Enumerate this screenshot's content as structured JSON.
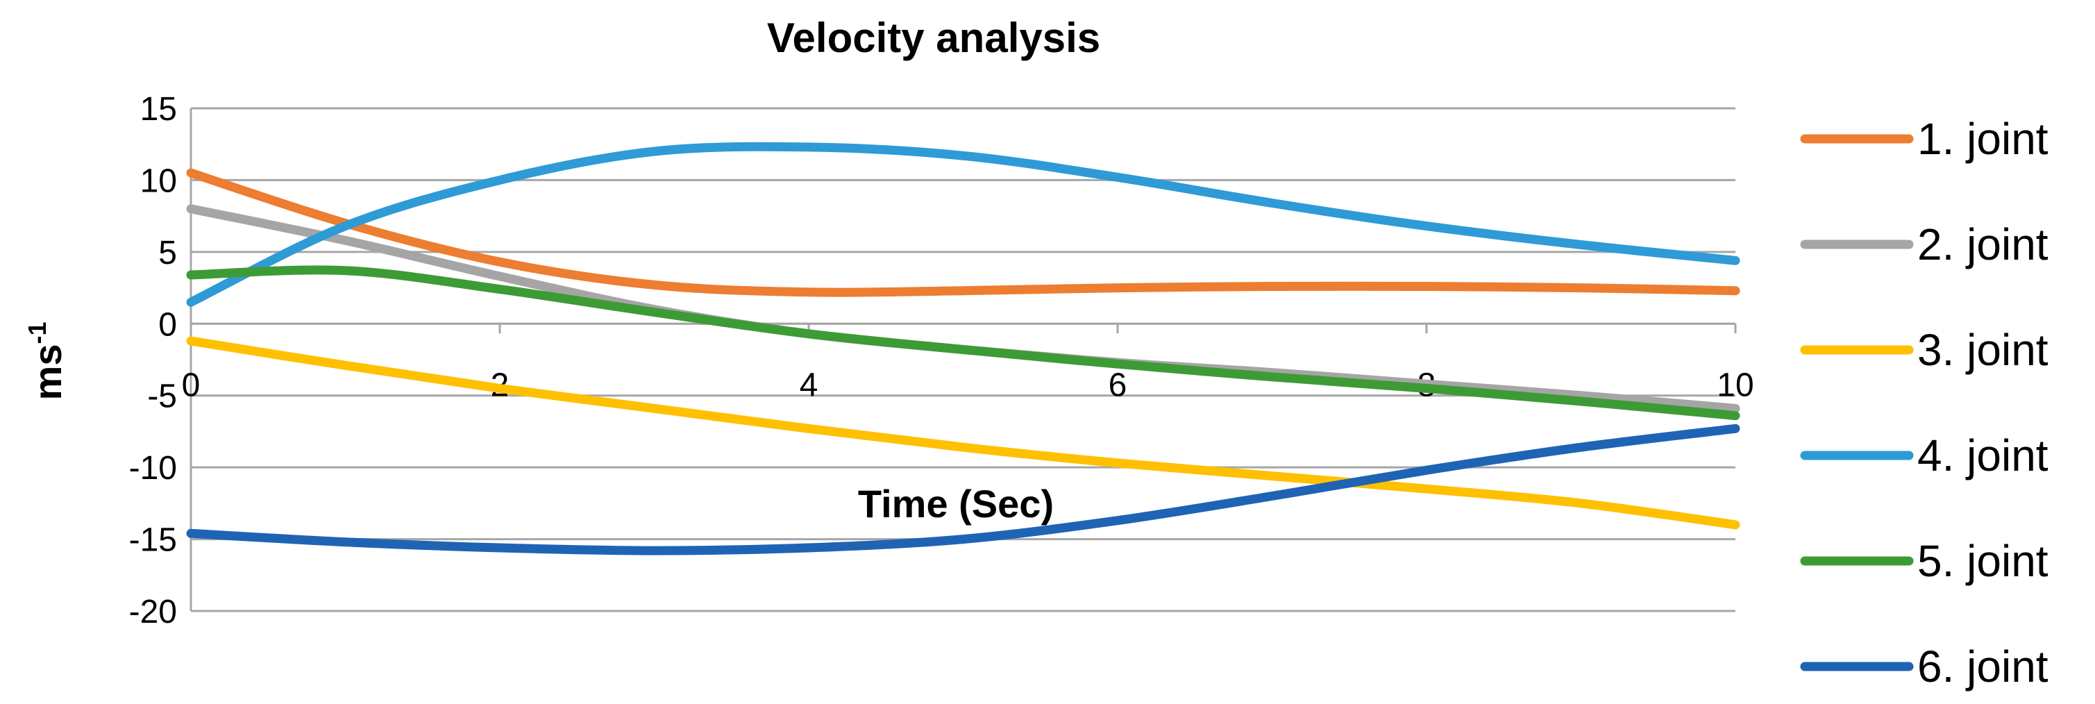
{
  "chart_data": {
    "type": "line",
    "title": "Velocity analysis",
    "xlabel": "Time (Sec)",
    "ylabel": "ms",
    "ylabel_superscript": "-1",
    "xlim": [
      0,
      10
    ],
    "ylim": [
      -20,
      15
    ],
    "xticks": [
      "0",
      "2",
      "4",
      "6",
      "8",
      "10"
    ],
    "yticks": [
      "15",
      "10",
      "5",
      "0",
      "-5",
      "-10",
      "-15",
      "-20"
    ],
    "grid": "horizontal",
    "legend_position": "right",
    "x": [
      0,
      1,
      2,
      3,
      4,
      5,
      6,
      7,
      8,
      9,
      10
    ],
    "series": [
      {
        "name": "1. joint",
        "color": "#ED7D31",
        "values": [
          10.5,
          7.0,
          4.3,
          2.7,
          2.2,
          2.3,
          2.5,
          2.6,
          2.6,
          2.5,
          2.3
        ]
      },
      {
        "name": "2. joint",
        "color": "#A5A5A5",
        "values": [
          8.0,
          5.8,
          3.3,
          1.0,
          -0.7,
          -1.8,
          -2.7,
          -3.4,
          -4.2,
          -5.0,
          -5.9
        ]
      },
      {
        "name": "3. joint",
        "color": "#FFC000",
        "values": [
          -1.2,
          -2.9,
          -4.5,
          -5.9,
          -7.3,
          -8.6,
          -9.7,
          -10.6,
          -11.5,
          -12.5,
          -14.0
        ]
      },
      {
        "name": "4. joint",
        "color": "#2E9BD6",
        "values": [
          1.5,
          6.8,
          10.0,
          12.0,
          12.3,
          11.7,
          10.2,
          8.4,
          6.8,
          5.5,
          4.4
        ]
      },
      {
        "name": "5. joint",
        "color": "#3D9B35",
        "values": [
          3.4,
          3.7,
          2.4,
          0.8,
          -0.7,
          -1.8,
          -2.8,
          -3.7,
          -4.5,
          -5.4,
          -6.4
        ]
      },
      {
        "name": "6. joint",
        "color": "#1F64B4",
        "values": [
          -14.6,
          -15.2,
          -15.6,
          -15.8,
          -15.6,
          -15.0,
          -13.7,
          -12.0,
          -10.2,
          -8.6,
          -7.3
        ]
      }
    ]
  }
}
